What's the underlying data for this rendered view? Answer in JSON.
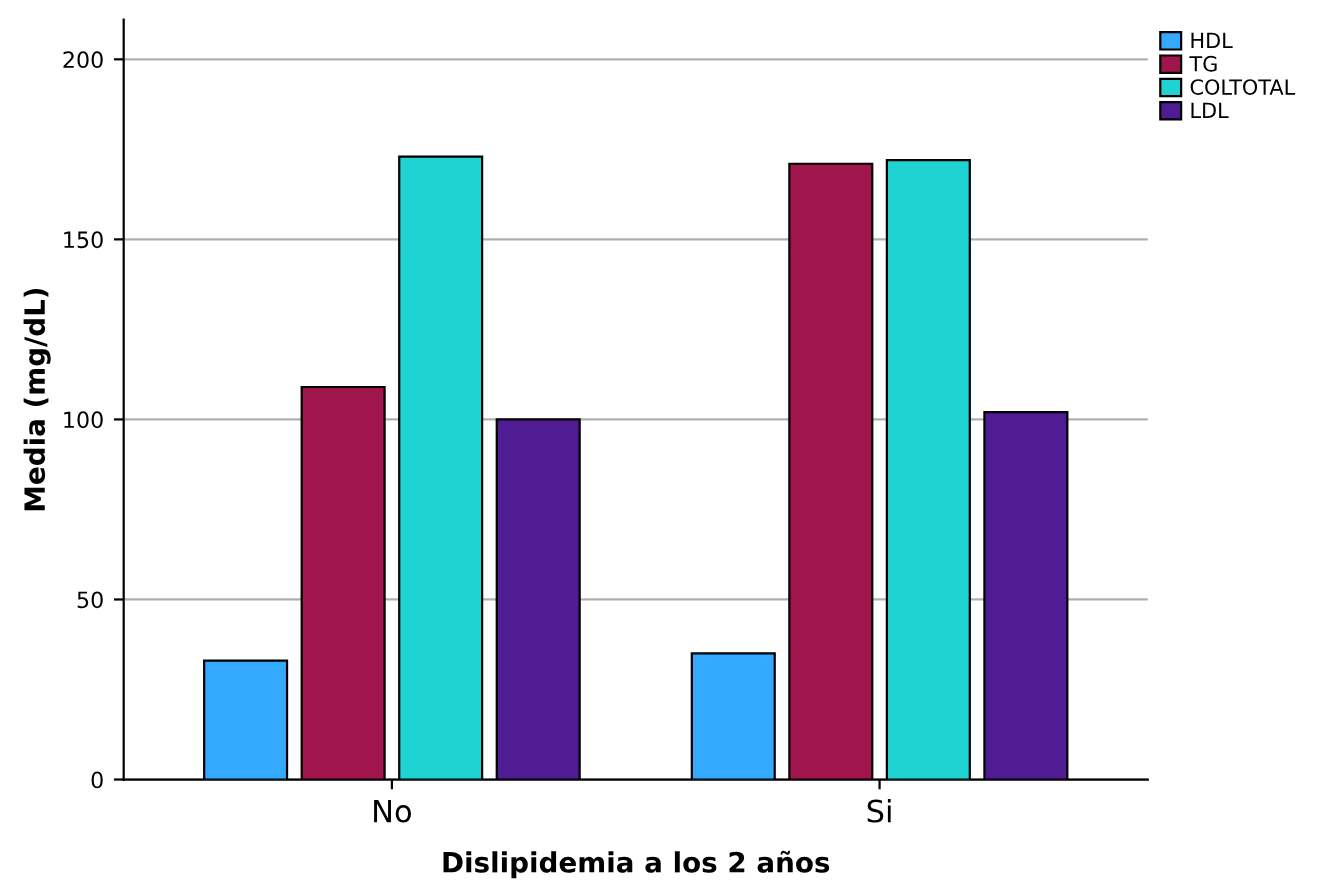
{
  "chart_data": {
    "type": "bar",
    "xlabel": "Dislipidemia a los 2 años",
    "ylabel": "Media (mg/dL)",
    "categories": [
      "No",
      "Si"
    ],
    "series": [
      {
        "name": "HDL",
        "color": "#33aaff",
        "values": [
          33,
          35
        ]
      },
      {
        "name": "TG",
        "color": "#a0164c",
        "values": [
          109,
          171
        ]
      },
      {
        "name": "COLTOTAL",
        "color": "#1fd3d3",
        "values": [
          173,
          172
        ]
      },
      {
        "name": "LDL",
        "color": "#4f1c94",
        "values": [
          100,
          102
        ]
      }
    ],
    "ylim": [
      0,
      211
    ],
    "yticks": [
      0,
      50,
      100,
      150,
      200
    ],
    "grid": "y",
    "legend": "top right"
  }
}
